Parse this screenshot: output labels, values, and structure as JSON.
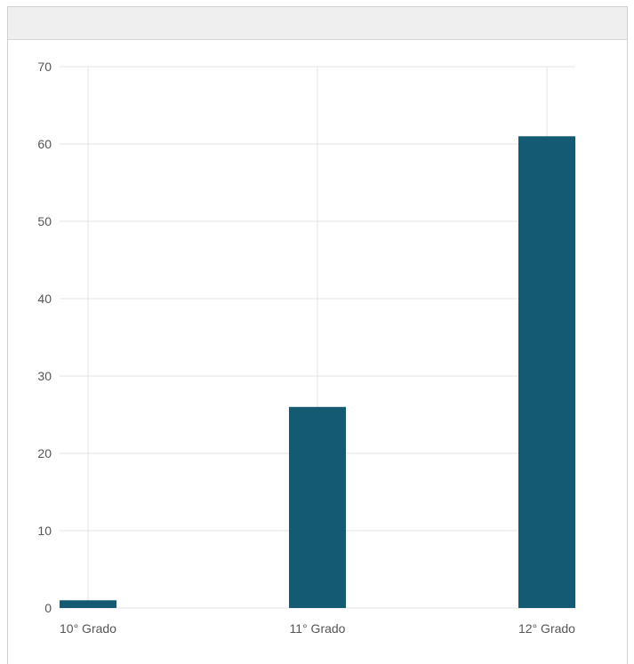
{
  "chart_data": {
    "type": "bar",
    "categories": [
      "10° Grado",
      "11° Grado",
      "12° Grado"
    ],
    "values": [
      1,
      26,
      61
    ],
    "title": "",
    "xlabel": "",
    "ylabel": "",
    "ylim": [
      0,
      70
    ],
    "yticks": [
      0,
      10,
      20,
      30,
      40,
      50,
      60,
      70
    ],
    "grid": true,
    "colors": {
      "bar": "#135a72",
      "grid": "#e3e3e3",
      "tick_text": "#555555"
    }
  }
}
